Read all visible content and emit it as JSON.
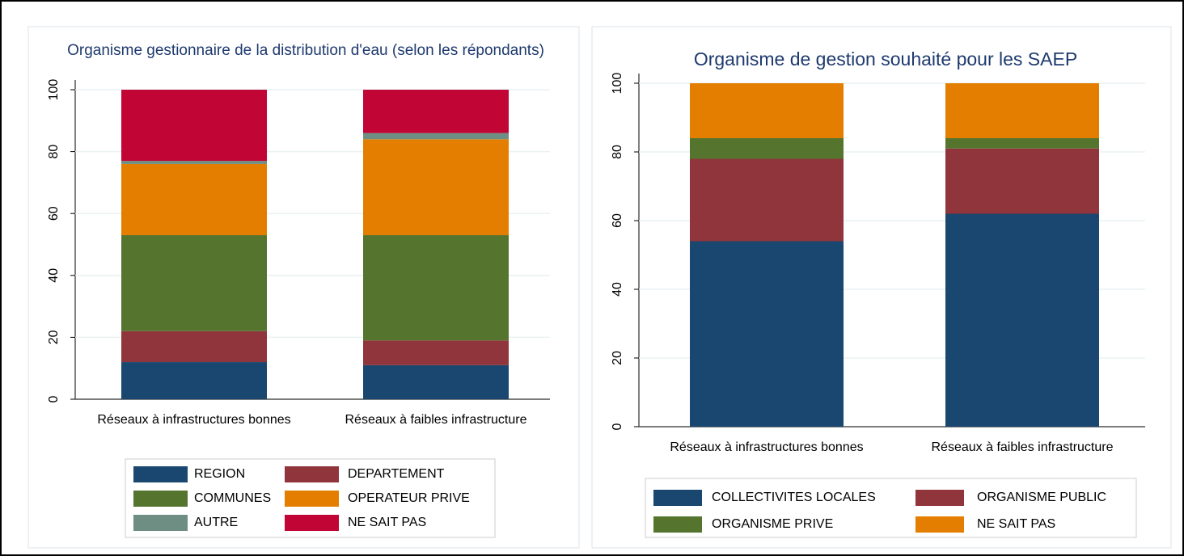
{
  "chart_data": [
    {
      "type": "bar",
      "stacked": true,
      "title": "Organisme gestionnaire de la distribution d'eau (selon les répondants)",
      "categories": [
        "Réseaux à infrastructures bonnes",
        "Réseaux à faibles infrastructure"
      ],
      "series": [
        {
          "name": "REGION",
          "color": "#1a476f",
          "values": [
            12,
            11
          ]
        },
        {
          "name": "DEPARTEMENT",
          "color": "#90353b",
          "values": [
            10,
            8
          ]
        },
        {
          "name": "COMMUNES",
          "color": "#55752f",
          "values": [
            31,
            34
          ]
        },
        {
          "name": "OPERATEUR PRIVE",
          "color": "#e37e00",
          "values": [
            23,
            31
          ]
        },
        {
          "name": "AUTRE",
          "color": "#6e8e84",
          "values": [
            1,
            2
          ]
        },
        {
          "name": "NE SAIT PAS",
          "color": "#c10534",
          "values": [
            23,
            14
          ]
        }
      ],
      "ylim": [
        0,
        100
      ],
      "yticks": [
        0,
        20,
        40,
        60,
        80,
        100
      ],
      "grid": true
    },
    {
      "type": "bar",
      "stacked": true,
      "title": "Organisme de gestion souhaité pour les SAEP",
      "categories": [
        "Réseaux à infrastructures bonnes",
        "Réseaux à faibles infrastructure"
      ],
      "series": [
        {
          "name": "COLLECTIVITES LOCALES",
          "color": "#1a476f",
          "values": [
            54,
            62
          ]
        },
        {
          "name": "ORGANISME PUBLIC",
          "color": "#90353b",
          "values": [
            24,
            19
          ]
        },
        {
          "name": "ORGANISME PRIVE",
          "color": "#55752f",
          "values": [
            6,
            3
          ]
        },
        {
          "name": "NE SAIT PAS",
          "color": "#e37e00",
          "values": [
            16,
            16
          ]
        }
      ],
      "ylim": [
        0,
        100
      ],
      "yticks": [
        0,
        20,
        40,
        60,
        80,
        100
      ],
      "grid": true
    }
  ]
}
